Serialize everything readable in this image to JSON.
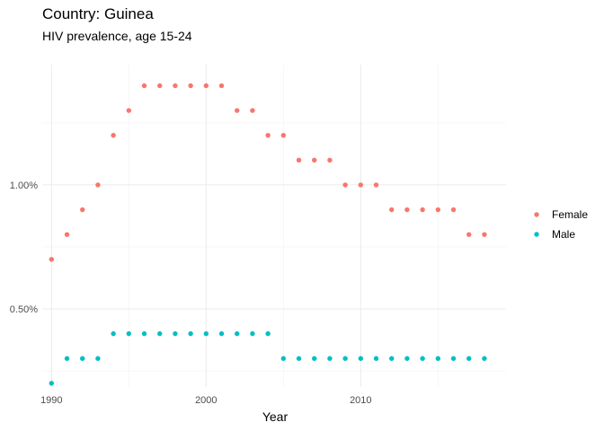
{
  "chart_data": {
    "type": "scatter",
    "title": "Country: Guinea",
    "subtitle": "HIV prevalence, age 15-24",
    "xlabel": "Year",
    "ylabel": "",
    "xlim": [
      1989.4,
      2019.4
    ],
    "ylim": [
      0.185,
      1.485
    ],
    "x_ticks": [
      1990,
      2000,
      2010
    ],
    "x_tick_labels": [
      "1990",
      "2000",
      "2010"
    ],
    "y_ticks": [
      0.5,
      1.0
    ],
    "y_tick_labels": [
      "0.50%",
      "1.00%"
    ],
    "grid": true,
    "legend_position": "right",
    "series": [
      {
        "name": "Female",
        "color": "#F8766D",
        "x": [
          1990,
          1991,
          1992,
          1993,
          1994,
          1995,
          1996,
          1997,
          1998,
          1999,
          2000,
          2001,
          2002,
          2003,
          2004,
          2005,
          2006,
          2007,
          2008,
          2009,
          2010,
          2011,
          2012,
          2013,
          2014,
          2015,
          2016,
          2017,
          2018
        ],
        "values": [
          0.7,
          0.8,
          0.9,
          1.0,
          1.2,
          1.3,
          1.4,
          1.4,
          1.4,
          1.4,
          1.4,
          1.4,
          1.3,
          1.3,
          1.2,
          1.2,
          1.1,
          1.1,
          1.1,
          1.0,
          1.0,
          1.0,
          0.9,
          0.9,
          0.9,
          0.9,
          0.9,
          0.8,
          0.8
        ]
      },
      {
        "name": "Male",
        "color": "#00BFC4",
        "x": [
          1990,
          1991,
          1992,
          1993,
          1994,
          1995,
          1996,
          1997,
          1998,
          1999,
          2000,
          2001,
          2002,
          2003,
          2004,
          2005,
          2006,
          2007,
          2008,
          2009,
          2010,
          2011,
          2012,
          2013,
          2014,
          2015,
          2016,
          2017,
          2018
        ],
        "values": [
          0.2,
          0.3,
          0.3,
          0.3,
          0.4,
          0.4,
          0.4,
          0.4,
          0.4,
          0.4,
          0.4,
          0.4,
          0.4,
          0.4,
          0.4,
          0.3,
          0.3,
          0.3,
          0.3,
          0.3,
          0.3,
          0.3,
          0.3,
          0.3,
          0.3,
          0.3,
          0.3,
          0.3,
          0.3
        ]
      }
    ]
  }
}
